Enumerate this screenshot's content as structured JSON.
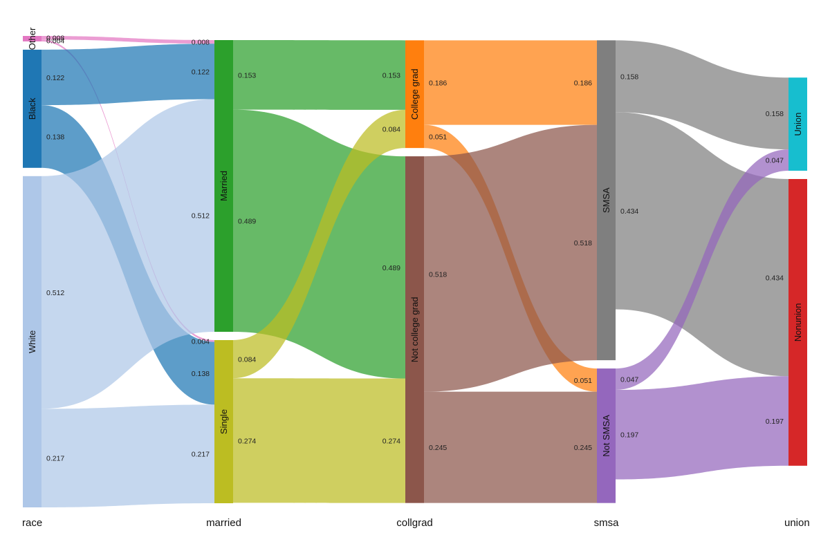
{
  "chart_data": {
    "type": "sankey",
    "title": "",
    "stages": [
      {
        "key": "race",
        "label": "race",
        "nodes": [
          {
            "id": "Other",
            "label": "Other",
            "color": "#e377c2"
          },
          {
            "id": "Black",
            "label": "Black",
            "color": "#1f77b4"
          },
          {
            "id": "White",
            "label": "White",
            "color": "#aec7e8"
          }
        ]
      },
      {
        "key": "married",
        "label": "married",
        "nodes": [
          {
            "id": "Married",
            "label": "Married",
            "color": "#2ca02c"
          },
          {
            "id": "Single",
            "label": "Single",
            "color": "#bcbd22"
          }
        ]
      },
      {
        "key": "collgrad",
        "label": "collgrad",
        "nodes": [
          {
            "id": "College grad",
            "label": "College grad",
            "color": "#ff7f0e"
          },
          {
            "id": "Not college grad",
            "label": "Not college grad",
            "color": "#8c564b"
          }
        ]
      },
      {
        "key": "smsa",
        "label": "smsa",
        "nodes": [
          {
            "id": "SMSA",
            "label": "SMSA",
            "color": "#7f7f7f"
          },
          {
            "id": "Not SMSA",
            "label": "Not SMSA",
            "color": "#9467bd"
          }
        ]
      },
      {
        "key": "union",
        "label": "union",
        "nodes": [
          {
            "id": "Union",
            "label": "Union",
            "color": "#17becf"
          },
          {
            "id": "Nonunion",
            "label": "Nonunion",
            "color": "#d62728"
          }
        ]
      }
    ],
    "links": [
      {
        "stage": 0,
        "source": "Other",
        "target": "Married",
        "value": 0.008,
        "src_label": "0.008",
        "tgt_label": "0.008"
      },
      {
        "stage": 0,
        "source": "Other",
        "target": "Single",
        "value": 0.004,
        "src_label": "0.004",
        "tgt_label": "0.004"
      },
      {
        "stage": 0,
        "source": "Black",
        "target": "Married",
        "value": 0.122,
        "src_label": "0.122",
        "tgt_label": "0.122"
      },
      {
        "stage": 0,
        "source": "Black",
        "target": "Single",
        "value": 0.138,
        "src_label": "0.138",
        "tgt_label": "0.138"
      },
      {
        "stage": 0,
        "source": "White",
        "target": "Married",
        "value": 0.512,
        "src_label": "0.512",
        "tgt_label": "0.512"
      },
      {
        "stage": 0,
        "source": "White",
        "target": "Single",
        "value": 0.217,
        "src_label": "0.217",
        "tgt_label": "0.217"
      },
      {
        "stage": 1,
        "source": "Married",
        "target": "College grad",
        "value": 0.153,
        "src_label": "0.153",
        "tgt_label": "0.153"
      },
      {
        "stage": 1,
        "source": "Married",
        "target": "Not college grad",
        "value": 0.489,
        "src_label": "0.489",
        "tgt_label": "0.489"
      },
      {
        "stage": 1,
        "source": "Single",
        "target": "College grad",
        "value": 0.084,
        "src_label": "0.084",
        "tgt_label": "0.084"
      },
      {
        "stage": 1,
        "source": "Single",
        "target": "Not college grad",
        "value": 0.274,
        "src_label": "0.274",
        "tgt_label": "0.274"
      },
      {
        "stage": 2,
        "source": "College grad",
        "target": "SMSA",
        "value": 0.186,
        "src_label": "0.186",
        "tgt_label": "0.186"
      },
      {
        "stage": 2,
        "source": "College grad",
        "target": "Not SMSA",
        "value": 0.051,
        "src_label": "0.051",
        "tgt_label": "0.051"
      },
      {
        "stage": 2,
        "source": "Not college grad",
        "target": "SMSA",
        "value": 0.518,
        "src_label": "0.518",
        "tgt_label": "0.518"
      },
      {
        "stage": 2,
        "source": "Not college grad",
        "target": "Not SMSA",
        "value": 0.245,
        "src_label": "0.245",
        "tgt_label": "0.245"
      },
      {
        "stage": 3,
        "source": "SMSA",
        "target": "Union",
        "value": 0.158,
        "src_label": "0.158",
        "tgt_label": "0.158"
      },
      {
        "stage": 3,
        "source": "SMSA",
        "target": "Nonunion",
        "value": 0.434,
        "src_label": "0.434",
        "tgt_label": "0.434"
      },
      {
        "stage": 3,
        "source": "Not SMSA",
        "target": "Union",
        "value": 0.047,
        "src_label": "0.047",
        "tgt_label": "0.047"
      },
      {
        "stage": 3,
        "source": "Not SMSA",
        "target": "Nonunion",
        "value": 0.197,
        "src_label": "0.197",
        "tgt_label": "0.197"
      }
    ]
  }
}
